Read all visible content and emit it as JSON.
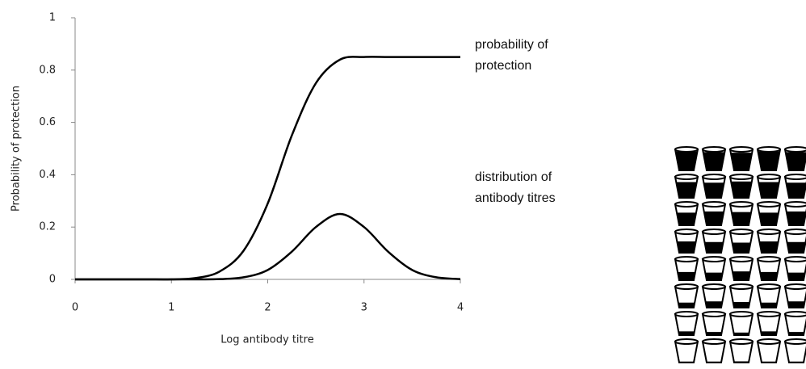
{
  "chart_data": {
    "type": "line",
    "xlabel": "Log antibody titre",
    "ylabel": "Probability of protection",
    "x": [
      0,
      0.25,
      0.5,
      0.75,
      1,
      1.25,
      1.5,
      1.75,
      2,
      2.25,
      2.5,
      2.75,
      3,
      3.25,
      3.5,
      3.75,
      4
    ],
    "series": [
      {
        "name": "probability of protection",
        "color": "#000000",
        "values": [
          0,
          0,
          0,
          0,
          0,
          0.005,
          0.03,
          0.11,
          0.29,
          0.55,
          0.75,
          0.84,
          0.85,
          0.85,
          0.85,
          0.85,
          0.85
        ]
      },
      {
        "name": "distribution of antibody titres",
        "color": "#000000",
        "values": [
          0,
          0,
          0,
          0,
          0,
          0,
          0.001,
          0.008,
          0.036,
          0.106,
          0.2,
          0.25,
          0.2,
          0.106,
          0.036,
          0.008,
          0.001
        ]
      }
    ],
    "xlim": [
      0,
      4
    ],
    "xticks": [
      0,
      1,
      2,
      3,
      4
    ],
    "ylim": [
      0,
      1
    ],
    "yticks": [
      0,
      0.2,
      0.4,
      0.6,
      0.8,
      1
    ],
    "grid": false
  }
}
